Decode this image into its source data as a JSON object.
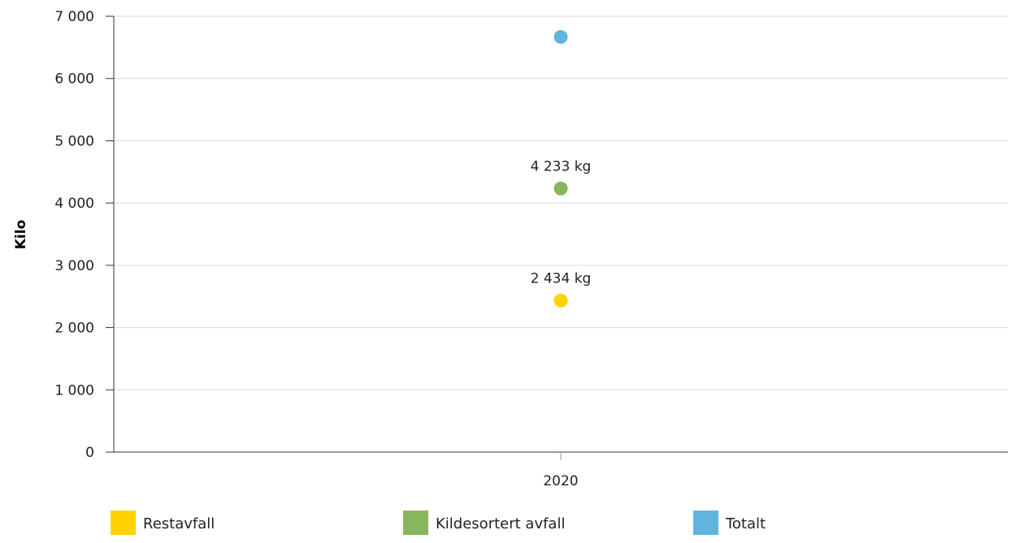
{
  "chart_data": {
    "type": "scatter",
    "ylabel": "Kilo",
    "ylim": [
      0,
      7000
    ],
    "y_ticks": [
      0,
      1000,
      2000,
      3000,
      4000,
      5000,
      6000,
      7000
    ],
    "y_tick_labels": [
      "0",
      "1 000",
      "2 000",
      "3 000",
      "4 000",
      "5 000",
      "6 000",
      "7 000"
    ],
    "categories": [
      "2020"
    ],
    "grid": true,
    "legend_position": "bottom",
    "series": [
      {
        "name": "Restavfall",
        "color": "#FFD200",
        "values": [
          2434
        ],
        "data_labels": [
          "2 434 kg"
        ]
      },
      {
        "name": "Kildesortert avfall",
        "color": "#86B75E",
        "values": [
          4233
        ],
        "data_labels": [
          "4 233 kg"
        ]
      },
      {
        "name": "Totalt",
        "color": "#62B4DD",
        "values": [
          6667
        ],
        "data_labels": [
          ""
        ]
      }
    ]
  }
}
